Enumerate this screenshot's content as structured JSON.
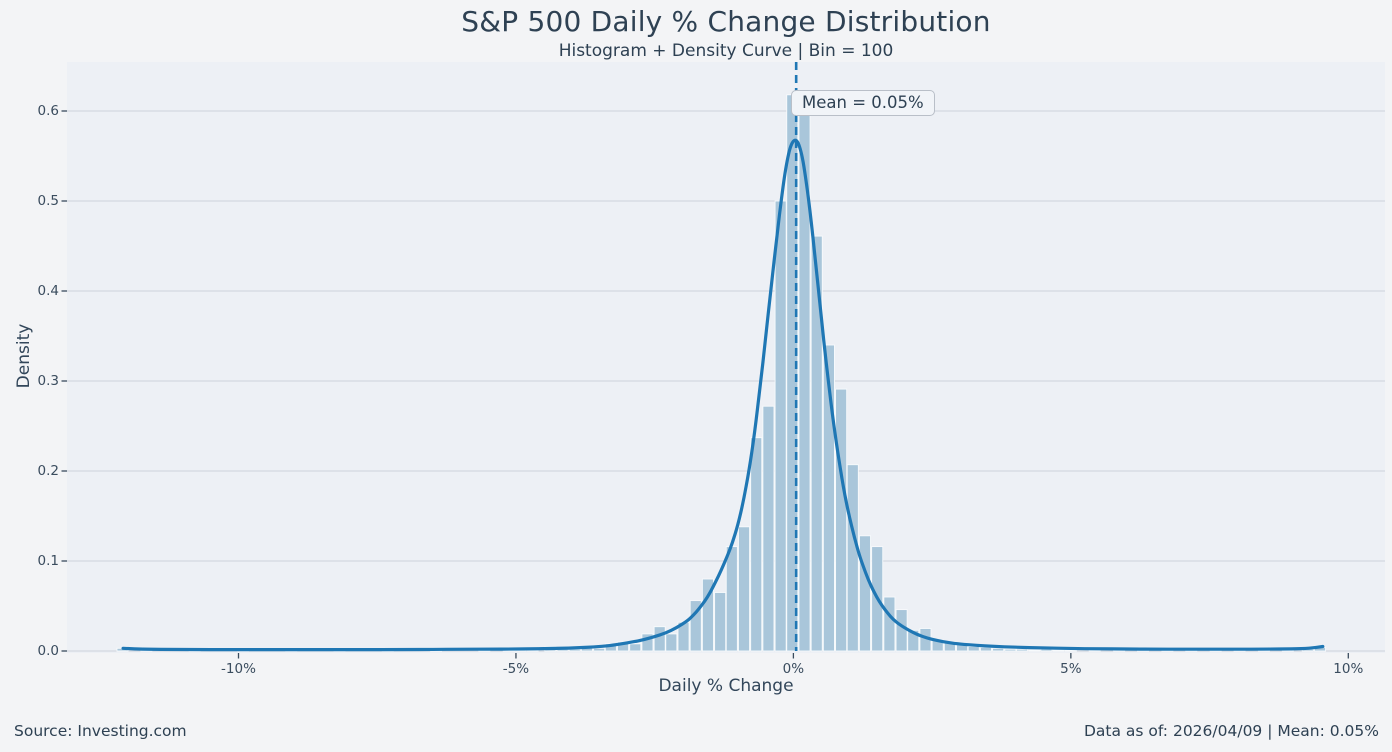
{
  "header": {
    "title": "S&P 500 Daily % Change Distribution",
    "subtitle": "Histogram + Density Curve | Bin = 100"
  },
  "annotation": {
    "label": "Mean = 0.05%"
  },
  "footer": {
    "source": "Source: Investing.com",
    "data_as_of": "Data as of: 2026/04/09 | Mean: 0.05%"
  },
  "colors": {
    "figure_bg": "#f3f4f6",
    "axes_bg": "#edf0f5",
    "gridline": "#cdd2da",
    "bar_fill": "#a9c6da",
    "bar_edge": "#f7fafc",
    "curve": "#1f77b4",
    "mean_line": "#1f77b4",
    "text": "#2e4153",
    "tick": "#3a4c5e"
  },
  "chart_data": {
    "type": "histogram+density",
    "title": "S&P 500 Daily % Change Distribution",
    "subtitle": "Histogram + Density Curve | Bin = 100",
    "xlabel": "Daily % Change",
    "ylabel": "Density",
    "bin_count": 100,
    "bin_width_pct": 0.218,
    "mean_pct": 0.05,
    "xlim": [
      -13.1,
      10.66
    ],
    "ylim": [
      0,
      0.654
    ],
    "grid": "horizontal",
    "legend": "none",
    "xticks": [
      {
        "value": -10,
        "label": "-10%"
      },
      {
        "value": -5,
        "label": "-5%"
      },
      {
        "value": 0,
        "label": "0%"
      },
      {
        "value": 5,
        "label": "5%"
      },
      {
        "value": 10,
        "label": "10%"
      }
    ],
    "yticks": [
      {
        "value": 0.0,
        "label": "0.0"
      },
      {
        "value": 0.1,
        "label": "0.1"
      },
      {
        "value": 0.2,
        "label": "0.2"
      },
      {
        "value": 0.3,
        "label": "0.3"
      },
      {
        "value": 0.4,
        "label": "0.4"
      },
      {
        "value": 0.5,
        "label": "0.5"
      },
      {
        "value": 0.6,
        "label": "0.6"
      }
    ],
    "histogram": [
      [
        -12.09,
        0.003
      ],
      [
        -11.66,
        0.001
      ],
      [
        -10.79,
        0.001
      ],
      [
        -9.92,
        0.001
      ],
      [
        -9.05,
        0.001
      ],
      [
        -8.18,
        0.001
      ],
      [
        -7.31,
        0.001
      ],
      [
        -6.44,
        0.001
      ],
      [
        -5.57,
        0.001
      ],
      [
        -5.13,
        0.001
      ],
      [
        -4.92,
        0.002
      ],
      [
        -4.7,
        0.001
      ],
      [
        -4.38,
        0.005
      ],
      [
        -4.16,
        0.002
      ],
      [
        -3.94,
        0.002
      ],
      [
        -3.72,
        0.004
      ],
      [
        -3.5,
        0.003
      ],
      [
        -3.29,
        0.008
      ],
      [
        -3.07,
        0.01
      ],
      [
        -2.85,
        0.008
      ],
      [
        -2.63,
        0.019
      ],
      [
        -2.41,
        0.027
      ],
      [
        -2.2,
        0.019
      ],
      [
        -1.98,
        0.032
      ],
      [
        -1.76,
        0.056
      ],
      [
        -1.54,
        0.08
      ],
      [
        -1.32,
        0.065
      ],
      [
        -1.11,
        0.116
      ],
      [
        -0.89,
        0.138
      ],
      [
        -0.67,
        0.237
      ],
      [
        -0.45,
        0.272
      ],
      [
        -0.23,
        0.5
      ],
      [
        -0.02,
        0.618
      ],
      [
        0.2,
        0.6
      ],
      [
        0.42,
        0.461
      ],
      [
        0.64,
        0.34
      ],
      [
        0.86,
        0.291
      ],
      [
        1.07,
        0.207
      ],
      [
        1.29,
        0.128
      ],
      [
        1.51,
        0.116
      ],
      [
        1.73,
        0.06
      ],
      [
        1.95,
        0.046
      ],
      [
        2.16,
        0.023
      ],
      [
        2.38,
        0.025
      ],
      [
        2.6,
        0.012
      ],
      [
        2.82,
        0.009
      ],
      [
        3.04,
        0.008
      ],
      [
        3.25,
        0.005
      ],
      [
        3.47,
        0.004
      ],
      [
        3.69,
        0.003
      ],
      [
        3.91,
        0.002
      ],
      [
        4.12,
        0.002
      ],
      [
        4.34,
        0.001
      ],
      [
        4.56,
        0.002
      ],
      [
        4.78,
        0.001
      ],
      [
        5.0,
        0.001
      ],
      [
        5.43,
        0.001
      ],
      [
        5.87,
        0.001
      ],
      [
        6.3,
        0.001
      ],
      [
        6.74,
        0.001
      ],
      [
        7.17,
        0.001
      ],
      [
        7.61,
        0.001
      ],
      [
        8.04,
        0.001
      ],
      [
        8.48,
        0.001
      ],
      [
        8.91,
        0.001
      ],
      [
        9.27,
        0.002
      ],
      [
        9.49,
        0.004
      ]
    ],
    "density_curve": [
      [
        -12.08,
        0.003
      ],
      [
        -11.8,
        0.002
      ],
      [
        -11,
        0.0015
      ],
      [
        -10,
        0.0015
      ],
      [
        -9,
        0.0015
      ],
      [
        -8,
        0.0015
      ],
      [
        -7,
        0.0016
      ],
      [
        -6.5,
        0.0017
      ],
      [
        -6,
        0.002
      ],
      [
        -5.5,
        0.002
      ],
      [
        -5,
        0.0022
      ],
      [
        -4.6,
        0.0025
      ],
      [
        -4.2,
        0.003
      ],
      [
        -3.9,
        0.0035
      ],
      [
        -3.6,
        0.0045
      ],
      [
        -3.3,
        0.006
      ],
      [
        -3.1,
        0.008
      ],
      [
        -2.9,
        0.01
      ],
      [
        -2.7,
        0.0125
      ],
      [
        -2.5,
        0.016
      ],
      [
        -2.3,
        0.02
      ],
      [
        -2.1,
        0.026
      ],
      [
        -1.9,
        0.034
      ],
      [
        -1.8,
        0.04
      ],
      [
        -1.7,
        0.047
      ],
      [
        -1.6,
        0.055
      ],
      [
        -1.5,
        0.065
      ],
      [
        -1.4,
        0.077
      ],
      [
        -1.3,
        0.09
      ],
      [
        -1.2,
        0.104
      ],
      [
        -1.1,
        0.12
      ],
      [
        -1.0,
        0.14
      ],
      [
        -0.9,
        0.167
      ],
      [
        -0.8,
        0.2
      ],
      [
        -0.7,
        0.242
      ],
      [
        -0.6,
        0.293
      ],
      [
        -0.5,
        0.348
      ],
      [
        -0.4,
        0.405
      ],
      [
        -0.3,
        0.46
      ],
      [
        -0.2,
        0.51
      ],
      [
        -0.15,
        0.532
      ],
      [
        -0.1,
        0.549
      ],
      [
        -0.05,
        0.561
      ],
      [
        0.0,
        0.567
      ],
      [
        0.05,
        0.568
      ],
      [
        0.1,
        0.563
      ],
      [
        0.15,
        0.552
      ],
      [
        0.2,
        0.535
      ],
      [
        0.3,
        0.49
      ],
      [
        0.4,
        0.432
      ],
      [
        0.5,
        0.372
      ],
      [
        0.6,
        0.315
      ],
      [
        0.7,
        0.264
      ],
      [
        0.8,
        0.22
      ],
      [
        0.9,
        0.182
      ],
      [
        1.0,
        0.151
      ],
      [
        1.1,
        0.126
      ],
      [
        1.2,
        0.104
      ],
      [
        1.3,
        0.087
      ],
      [
        1.4,
        0.072
      ],
      [
        1.5,
        0.06
      ],
      [
        1.6,
        0.05
      ],
      [
        1.7,
        0.042
      ],
      [
        1.8,
        0.035
      ],
      [
        1.9,
        0.03
      ],
      [
        2.0,
        0.026
      ],
      [
        2.2,
        0.019
      ],
      [
        2.4,
        0.0145
      ],
      [
        2.6,
        0.0115
      ],
      [
        2.8,
        0.0092
      ],
      [
        3.0,
        0.0078
      ],
      [
        3.3,
        0.0062
      ],
      [
        3.6,
        0.0052
      ],
      [
        4.0,
        0.0042
      ],
      [
        4.5,
        0.0034
      ],
      [
        5.0,
        0.0028
      ],
      [
        5.5,
        0.0024
      ],
      [
        6.0,
        0.0022
      ],
      [
        6.5,
        0.002
      ],
      [
        7.0,
        0.002
      ],
      [
        7.5,
        0.002
      ],
      [
        8.0,
        0.002
      ],
      [
        8.5,
        0.0021
      ],
      [
        9.0,
        0.0024
      ],
      [
        9.3,
        0.003
      ],
      [
        9.54,
        0.005
      ]
    ]
  }
}
